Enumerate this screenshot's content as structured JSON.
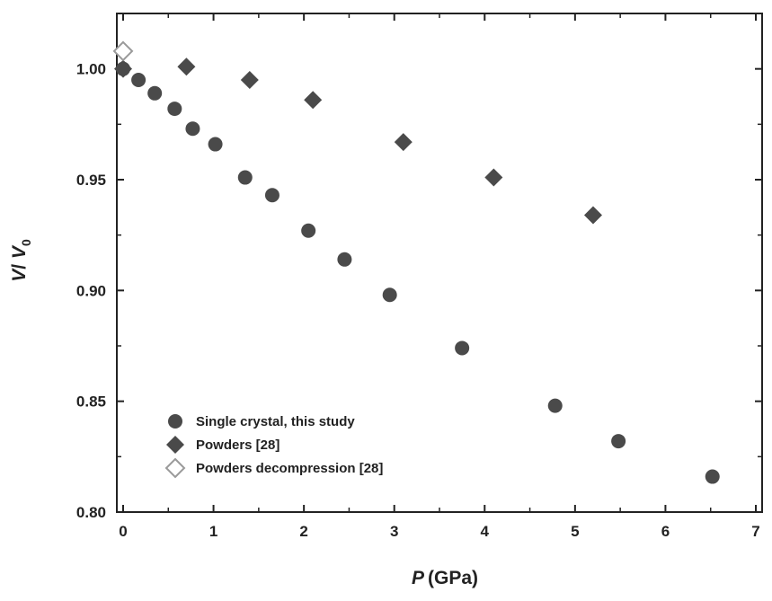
{
  "chart_data": {
    "type": "scatter",
    "xlabel": "P",
    "xlabel_unit": "(GPa)",
    "ylabel_main": "V",
    "ylabel_slash": "/ ",
    "ylabel_v": "V",
    "ylabel_sub": "0",
    "xlim": [
      0,
      7
    ],
    "ylim": [
      0.8,
      1.025
    ],
    "x_ticks": [
      0,
      1,
      2,
      3,
      4,
      5,
      6,
      7
    ],
    "x_tick_labels": [
      "0",
      "1",
      "2",
      "3",
      "4",
      "5",
      "6",
      "7"
    ],
    "y_ticks": [
      0.8,
      0.85,
      0.9,
      0.95,
      1.0
    ],
    "y_tick_labels": [
      "0.80",
      "0.85",
      "0.90",
      "0.95",
      "1.00"
    ],
    "grid": false,
    "legend_position": "bottom-left",
    "series": [
      {
        "name": "Single crystal, this study",
        "marker": "circle-filled",
        "color": "#4a4a4a",
        "points": [
          [
            0.0,
            1.0
          ],
          [
            0.17,
            0.995
          ],
          [
            0.35,
            0.989
          ],
          [
            0.57,
            0.982
          ],
          [
            0.77,
            0.973
          ],
          [
            1.02,
            0.966
          ],
          [
            1.35,
            0.951
          ],
          [
            1.65,
            0.943
          ],
          [
            2.05,
            0.927
          ],
          [
            2.45,
            0.914
          ],
          [
            2.95,
            0.898
          ],
          [
            3.75,
            0.874
          ],
          [
            4.78,
            0.848
          ],
          [
            5.48,
            0.832
          ],
          [
            6.52,
            0.816
          ]
        ]
      },
      {
        "name": "Powders [28]",
        "marker": "diamond-filled",
        "color": "#4a4a4a",
        "points": [
          [
            0.0,
            1.0
          ],
          [
            0.7,
            1.001
          ],
          [
            1.4,
            0.995
          ],
          [
            2.1,
            0.986
          ],
          [
            3.1,
            0.967
          ],
          [
            4.1,
            0.951
          ],
          [
            5.2,
            0.934
          ]
        ]
      },
      {
        "name": "Powders decompression [28]",
        "marker": "diamond-open",
        "color": "#9a9a9a",
        "points": [
          [
            0.0,
            1.008
          ]
        ]
      }
    ]
  }
}
